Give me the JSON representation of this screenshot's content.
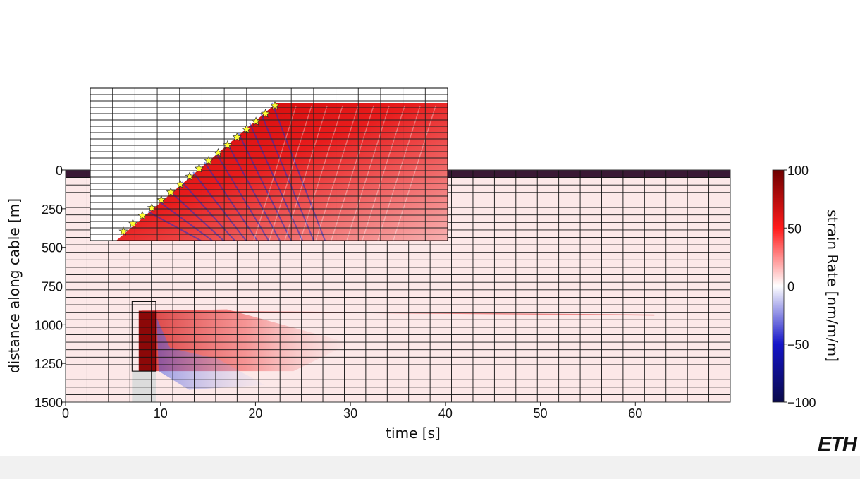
{
  "chart_data": {
    "type": "heatmap",
    "title": "",
    "xlabel": "time [s]",
    "ylabel": "distance along cable [m]",
    "xlim": [
      0,
      70
    ],
    "ylim": [
      0,
      1500
    ],
    "y_inverted": true,
    "x_ticks": [
      "0",
      "10",
      "20",
      "30",
      "40",
      "50",
      "60"
    ],
    "x_tick_values": [
      0,
      10,
      20,
      30,
      40,
      50,
      60
    ],
    "y_ticks": [
      "0",
      "250",
      "500",
      "750",
      "1000",
      "1250",
      "1500"
    ],
    "y_tick_values": [
      0,
      250,
      500,
      750,
      1000,
      1250,
      1500
    ],
    "colorbar": {
      "label": "strain Rate [nm/m/m]",
      "range": [
        -100,
        100
      ],
      "ticks": [
        "100",
        "50",
        "0",
        "−50",
        "−100"
      ],
      "tick_values": [
        100,
        50,
        0,
        -50,
        -100
      ],
      "colors": [
        "#0a0a4a",
        "#1414c8",
        "#ffffff",
        "#ff1a1a",
        "#6e0000"
      ]
    },
    "event": {
      "onset_time_s": 8,
      "onset_distance_m": 910,
      "end_distance_m": 1300,
      "inset_box_time_s": [
        7,
        9.5
      ],
      "inset_box_distance_m": [
        850,
        1300
      ]
    },
    "inset": {
      "description_free": true,
      "star_count": 17,
      "star_color": "#ffff33",
      "dominant_color": "#e01818"
    }
  },
  "branding": {
    "logo_text": "ETH"
  }
}
